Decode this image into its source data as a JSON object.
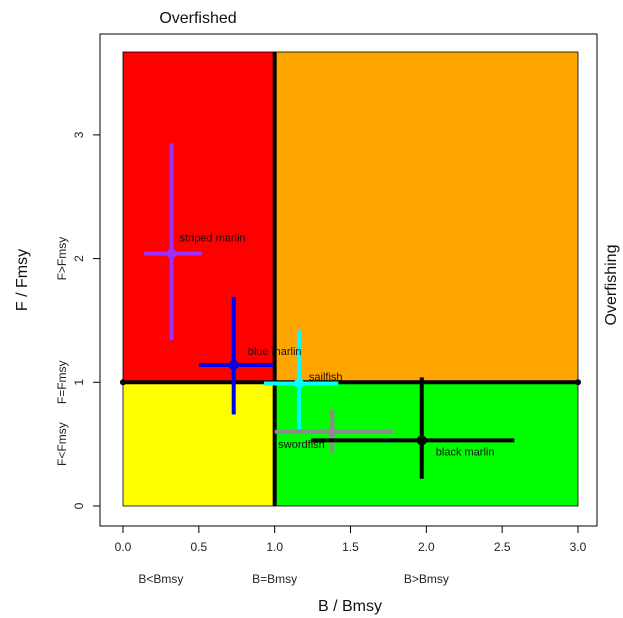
{
  "chart_data": {
    "type": "scatter",
    "title": "",
    "top_label": "Overfished",
    "right_label": "Overfishing",
    "xlabel": "B / Bmsy",
    "ylabel": "F / Fmsy",
    "xlim": [
      0,
      3
    ],
    "ylim": [
      0,
      3.67
    ],
    "x_ticks": [
      0,
      0.5,
      1,
      1.5,
      2,
      2.5,
      3
    ],
    "x_tick_labels": [
      "0.0",
      "0.5",
      "1.0",
      "1.5",
      "2.0",
      "2.5",
      "3.0"
    ],
    "y_ticks": [
      0,
      1,
      2,
      3
    ],
    "y_tick_labels": [
      "0",
      "1",
      "2",
      "3"
    ],
    "x_category_labels": [
      {
        "x": 0.25,
        "text": "B<Bmsy"
      },
      {
        "x": 1.0,
        "text": "B=Bmsy"
      },
      {
        "x": 2.0,
        "text": "B>Bmsy"
      }
    ],
    "y_category_labels": [
      {
        "y": 0.5,
        "text": "F<Fmsy"
      },
      {
        "y": 1.0,
        "text": "F=Fmsy"
      },
      {
        "y": 2.0,
        "text": "F>Fmsy"
      }
    ],
    "quadrants": [
      {
        "x": [
          0,
          1
        ],
        "y": [
          1,
          3.67
        ],
        "color": "#ff0000"
      },
      {
        "x": [
          1,
          3
        ],
        "y": [
          1,
          3.67
        ],
        "color": "#ffa500"
      },
      {
        "x": [
          0,
          1
        ],
        "y": [
          0,
          1
        ],
        "color": "#ffff00"
      },
      {
        "x": [
          1,
          3
        ],
        "y": [
          0,
          1
        ],
        "color": "#00ff00"
      }
    ],
    "series": [
      {
        "name": "striped marlin",
        "x": 0.32,
        "y": 2.04,
        "x_range": [
          0.14,
          0.52
        ],
        "y_range": [
          1.34,
          2.93
        ],
        "color": "#9b30ff"
      },
      {
        "name": "blue marlin",
        "x": 0.73,
        "y": 1.14,
        "x_range": [
          0.5,
          0.99
        ],
        "y_range": [
          0.74,
          1.69
        ],
        "color": "#0000ee"
      },
      {
        "name": "sailfish",
        "x": 1.16,
        "y": 0.99,
        "x_range": [
          0.93,
          1.42
        ],
        "y_range": [
          0.62,
          1.42
        ],
        "color": "#00ffff"
      },
      {
        "name": "swordfish",
        "x": 1.38,
        "y": 0.6,
        "x_range": [
          1.0,
          1.78
        ],
        "y_range": [
          0.43,
          0.78
        ],
        "color": "#8c8c8c"
      },
      {
        "name": "black marlin",
        "x": 1.97,
        "y": 0.53,
        "x_range": [
          1.24,
          2.58
        ],
        "y_range": [
          0.22,
          1.04
        ],
        "color": "#000000"
      }
    ]
  }
}
